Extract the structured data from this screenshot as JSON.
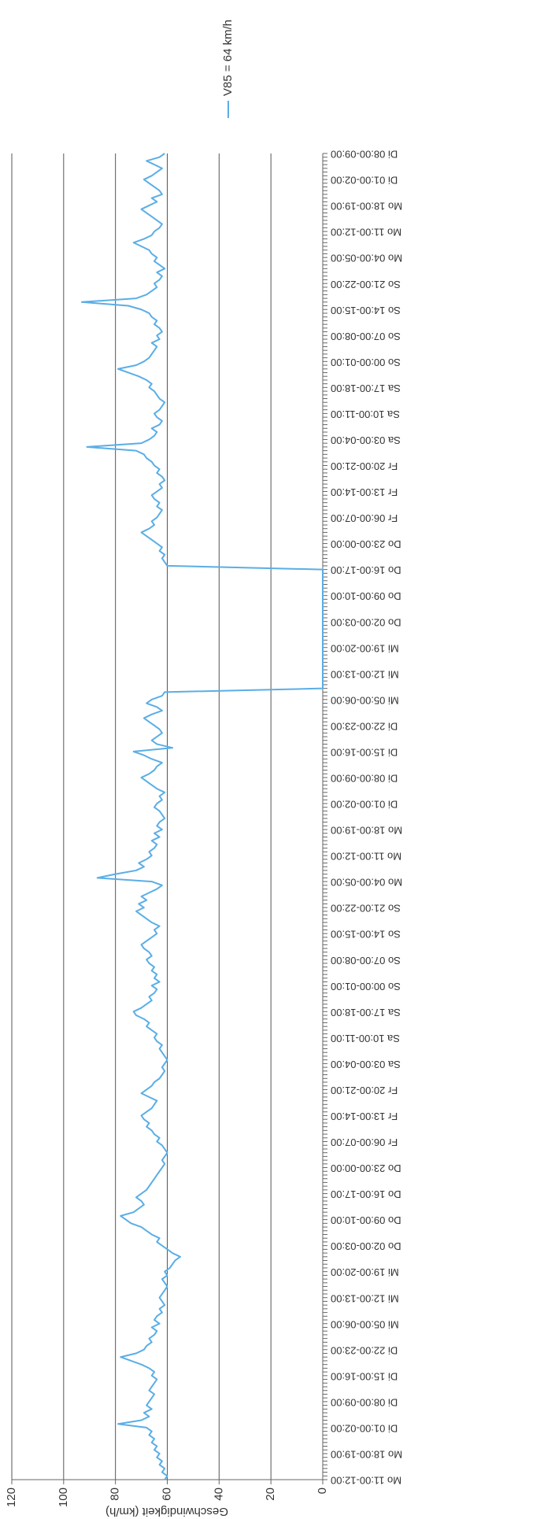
{
  "chart_data": {
    "type": "line",
    "y_label": "Geschwindigkeit (km/h)",
    "ylim": [
      0,
      120
    ],
    "yticks": [
      0,
      20,
      40,
      60,
      80,
      100,
      120
    ],
    "grid": true,
    "legend": "right",
    "categories": [
      "Mo 11:00-12:00",
      null,
      null,
      null,
      null,
      null,
      null,
      "Mo 18:00-19:00",
      null,
      null,
      null,
      null,
      null,
      null,
      "Di 01:00-02:00",
      null,
      null,
      null,
      null,
      null,
      null,
      "Di 08:00-09:00",
      null,
      null,
      null,
      null,
      null,
      null,
      "Di 15:00-16:00",
      null,
      null,
      null,
      null,
      null,
      null,
      "Di 22:00-23:00",
      null,
      null,
      null,
      null,
      null,
      null,
      "Mi 05:00-06:00",
      null,
      null,
      null,
      null,
      null,
      null,
      "Mi 12:00-13:00",
      null,
      null,
      null,
      null,
      null,
      null,
      "Mi 19:00-20:00",
      null,
      null,
      null,
      null,
      null,
      null,
      "Do 02:00-03:00",
      null,
      null,
      null,
      null,
      null,
      null,
      "Do 09:00-10:00",
      null,
      null,
      null,
      null,
      null,
      null,
      "Do 16:00-17:00",
      null,
      null,
      null,
      null,
      null,
      null,
      "Do 23:00-00:00",
      null,
      null,
      null,
      null,
      null,
      null,
      "Fr 06:00-07:00",
      null,
      null,
      null,
      null,
      null,
      null,
      "Fr 13:00-14:00",
      null,
      null,
      null,
      null,
      null,
      null,
      "Fr 20:00-21:00",
      null,
      null,
      null,
      null,
      null,
      null,
      "Sa 03:00-04:00",
      null,
      null,
      null,
      null,
      null,
      null,
      "Sa 10:00-11:00",
      null,
      null,
      null,
      null,
      null,
      null,
      "Sa 17:00-18:00",
      null,
      null,
      null,
      null,
      null,
      null,
      "So 00:00-01:00",
      null,
      null,
      null,
      null,
      null,
      null,
      "So 07:00-08:00",
      null,
      null,
      null,
      null,
      null,
      null,
      "So 14:00-15:00",
      null,
      null,
      null,
      null,
      null,
      null,
      "So 21:00-22:00",
      null,
      null,
      null,
      null,
      null,
      null,
      "Mo 04:00-05:00",
      null,
      null,
      null,
      null,
      null,
      null,
      "Mo 11:00-12:00",
      null,
      null,
      null,
      null,
      null,
      null,
      "Mo 18:00-19:00",
      null,
      null,
      null,
      null,
      null,
      null,
      "Di 01:00-02:00",
      null,
      null,
      null,
      null,
      null,
      null,
      "Di 08:00-09:00",
      null,
      null,
      null,
      null,
      null,
      null,
      "Di 15:00-16:00",
      null,
      null,
      null,
      null,
      null,
      null,
      "Di 22:00-23:00",
      null,
      null,
      null,
      null,
      null,
      null,
      "Mi 05:00-06:00",
      null,
      null,
      null,
      null,
      null,
      null,
      "Mi 12:00-13:00",
      null,
      null,
      null,
      null,
      null,
      null,
      "Mi 19:00-20:00",
      null,
      null,
      null,
      null,
      null,
      null,
      "Do 02:00-03:00",
      null,
      null,
      null,
      null,
      null,
      null,
      "Do 09:00-10:00",
      null,
      null,
      null,
      null,
      null,
      null,
      "Do 16:00-17:00",
      null,
      null,
      null,
      null,
      null,
      null,
      "Do 23:00-00:00",
      null,
      null,
      null,
      null,
      null,
      null,
      "Fr 06:00-07:00",
      null,
      null,
      null,
      null,
      null,
      null,
      "Fr 13:00-14:00",
      null,
      null,
      null,
      null,
      null,
      null,
      "Fr 20:00-21:00",
      null,
      null,
      null,
      null,
      null,
      null,
      "Sa 03:00-04:00",
      null,
      null,
      null,
      null,
      null,
      null,
      "Sa 10:00-11:00",
      null,
      null,
      null,
      null,
      null,
      null,
      "Sa 17:00-18:00",
      null,
      null,
      null,
      null,
      null,
      null,
      "So 00:00-01:00",
      null,
      null,
      null,
      null,
      null,
      null,
      "So 07:00-08:00",
      null,
      null,
      null,
      null,
      null,
      null,
      "So 14:00-15:00",
      null,
      null,
      null,
      null,
      null,
      null,
      "So 21:00-22:00",
      null,
      null,
      null,
      null,
      null,
      null,
      "Mo 04:00-05:00",
      null,
      null,
      null,
      null,
      null,
      null,
      "Mo 11:00-12:00",
      null,
      null,
      null,
      null,
      null,
      null,
      "Mo 18:00-19:00",
      null,
      null,
      null,
      null,
      null,
      null,
      "Di 01:00-02:00",
      null,
      null,
      null,
      null,
      null,
      null,
      "Di 08:00-09:00"
    ],
    "series": [
      {
        "name": "V85 = 64 km/h",
        "color": "#5aaee6",
        "values": [
          61,
          60,
          62,
          61,
          63,
          62,
          64,
          63,
          65,
          64,
          66,
          65,
          67,
          66,
          68,
          79,
          70,
          67,
          69,
          66,
          68,
          67,
          66,
          65,
          67,
          66,
          65,
          64,
          66,
          65,
          67,
          70,
          74,
          78,
          72,
          69,
          68,
          66,
          67,
          65,
          64,
          66,
          63,
          65,
          64,
          62,
          63,
          61,
          62,
          63,
          62,
          61,
          60,
          61,
          62,
          60,
          61,
          59,
          58,
          57,
          55,
          58,
          60,
          62,
          64,
          63,
          66,
          68,
          70,
          74,
          76,
          78,
          73,
          71,
          69,
          70,
          72,
          70,
          68,
          67,
          66,
          65,
          64,
          63,
          62,
          61,
          62,
          61,
          60,
          61,
          62,
          64,
          63,
          65,
          66,
          68,
          67,
          69,
          70,
          68,
          66,
          65,
          64,
          67,
          70,
          68,
          66,
          65,
          63,
          62,
          61,
          62,
          61,
          60,
          61,
          62,
          63,
          62,
          64,
          65,
          64,
          66,
          68,
          67,
          69,
          72,
          73,
          70,
          68,
          66,
          67,
          65,
          64,
          66,
          63,
          65,
          64,
          66,
          65,
          67,
          68,
          66,
          67,
          69,
          70,
          68,
          66,
          64,
          65,
          63,
          66,
          68,
          70,
          72,
          69,
          71,
          68,
          70,
          67,
          64,
          62,
          66,
          87,
          80,
          72,
          69,
          71,
          68,
          66,
          67,
          65,
          64,
          66,
          63,
          65,
          62,
          64,
          63,
          61,
          62,
          63,
          65,
          64,
          62,
          63,
          61,
          64,
          66,
          68,
          70,
          67,
          65,
          64,
          62,
          66,
          69,
          73,
          58,
          64,
          66,
          64,
          62,
          63,
          65,
          67,
          69,
          66,
          62,
          64,
          68,
          66,
          62,
          61,
          0,
          0,
          0,
          0,
          0,
          0,
          0,
          0,
          0,
          0,
          0,
          0,
          0,
          0,
          0,
          0,
          0,
          0,
          0,
          0,
          0,
          0,
          0,
          0,
          0,
          0,
          0,
          0,
          0,
          0,
          0,
          0,
          0,
          60,
          61,
          62,
          61,
          63,
          62,
          64,
          66,
          68,
          70,
          67,
          65,
          66,
          64,
          63,
          62,
          64,
          63,
          65,
          66,
          64,
          62,
          63,
          61,
          62,
          64,
          63,
          65,
          66,
          68,
          69,
          72,
          91,
          70,
          67,
          65,
          64,
          66,
          63,
          62,
          64,
          65,
          63,
          62,
          61,
          63,
          64,
          65,
          67,
          66,
          68,
          71,
          75,
          79,
          72,
          69,
          67,
          66,
          65,
          64,
          66,
          63,
          64,
          62,
          63,
          65,
          64,
          66,
          67,
          70,
          75,
          93,
          72,
          68,
          66,
          64,
          65,
          63,
          62,
          64,
          61,
          63,
          65,
          64,
          66,
          67,
          70,
          73,
          69,
          66,
          65,
          63,
          62,
          64,
          66,
          68,
          70,
          67,
          64,
          66,
          62,
          63,
          65,
          67,
          69,
          66,
          64,
          62,
          65,
          68,
          63,
          61
        ]
      }
    ]
  }
}
